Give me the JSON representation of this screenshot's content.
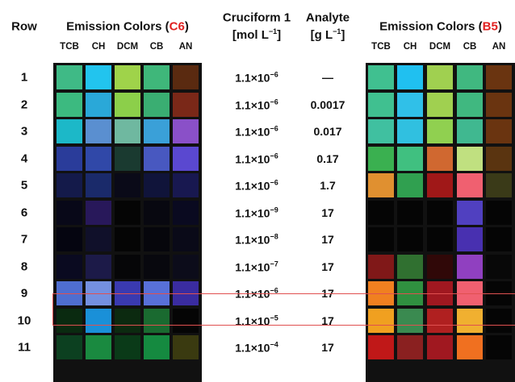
{
  "header": {
    "row": "Row",
    "left": {
      "prefix": "Emission Colors (",
      "code": "C6",
      "suffix": ")"
    },
    "right": {
      "prefix": "Emission Colors (",
      "code": "B5",
      "suffix": ")"
    },
    "conc": {
      "line1": "Cruciform 1",
      "unit_pre": "[mol L",
      "unit_exp": "−1",
      "unit_post": "]"
    },
    "analyte": {
      "line1": "Analyte",
      "unit_pre": "[g L",
      "unit_exp": "−1",
      "unit_post": "]"
    },
    "solvents": [
      "TCB",
      "CH",
      "DCM",
      "CB",
      "AN"
    ]
  },
  "rows": [
    {
      "row": "1",
      "left": [
        "#3fba86",
        "#22c4ee",
        "#9fd34a",
        "#3fb77a",
        "#5a2a10"
      ],
      "base": "1.1×10",
      "exp": "−6",
      "analyte": "—",
      "right": [
        "#40c090",
        "#20c0f0",
        "#a0d050",
        "#40b880",
        "#6a3410"
      ]
    },
    {
      "row": "2",
      "left": [
        "#3cba80",
        "#2aa8d8",
        "#8ccf4a",
        "#3aae72",
        "#7a2818"
      ],
      "base": "1.1×10",
      "exp": "−6",
      "analyte": "0.0017",
      "right": [
        "#40c090",
        "#30c0e8",
        "#a0d050",
        "#40b880",
        "#6a3410"
      ]
    },
    {
      "row": "3",
      "left": [
        "#1cb8c8",
        "#5a8fd0",
        "#6fb8a0",
        "#3aa0d8",
        "#8a50c8"
      ],
      "base": "1.1×10",
      "exp": "−6",
      "analyte": "0.017",
      "right": [
        "#40c0a0",
        "#30c0e0",
        "#90d050",
        "#40b890",
        "#6a3410"
      ]
    },
    {
      "row": "4",
      "left": [
        "#2a3c9a",
        "#3048a8",
        "#1a3a30",
        "#4858c0",
        "#5a48d0"
      ],
      "base": "1.1×10",
      "exp": "−6",
      "analyte": "0.17",
      "right": [
        "#3ab050",
        "#40c080",
        "#d06830",
        "#c0e080",
        "#5a3410"
      ]
    },
    {
      "row": "5",
      "left": [
        "#141a4a",
        "#1a2a6a",
        "#0a0a18",
        "#10143a",
        "#181850"
      ],
      "base": "1.1×10",
      "exp": "−6",
      "analyte": "1.7",
      "right": [
        "#e09030",
        "#30a050",
        "#a01818",
        "#f06070",
        "#3a3a18"
      ]
    },
    {
      "row": "6",
      "left": [
        "#080818",
        "#28185a",
        "#050505",
        "#080810",
        "#0a0a20"
      ],
      "base": "1.1×10",
      "exp": "−9",
      "analyte": "17",
      "right": [
        "#050505",
        "#050505",
        "#050505",
        "#5040c0",
        "#050505"
      ]
    },
    {
      "row": "7",
      "left": [
        "#050510",
        "#10102a",
        "#050505",
        "#06060c",
        "#0a0a18"
      ],
      "base": "1.1×10",
      "exp": "−8",
      "analyte": "17",
      "right": [
        "#050505",
        "#050505",
        "#050505",
        "#4830b0",
        "#050505"
      ]
    },
    {
      "row": "8",
      "left": [
        "#0a0a20",
        "#1c1a48",
        "#060608",
        "#08080e",
        "#0c0c1a"
      ],
      "base": "1.1×10",
      "exp": "−7",
      "analyte": "17",
      "right": [
        "#801818",
        "#307030",
        "#300808",
        "#9040c0",
        "#080808"
      ]
    },
    {
      "row": "9",
      "left": [
        "#4f6ed0",
        "#7490e0",
        "#3a3ab0",
        "#5870d8",
        "#3a2ca0"
      ],
      "base": "1.1×10",
      "exp": "−6",
      "analyte": "17",
      "right": [
        "#f08020",
        "#309040",
        "#a01820",
        "#f06070",
        "#050505"
      ]
    },
    {
      "row": "10",
      "left": [
        "#0a2a10",
        "#1a90d8",
        "#0c2a10",
        "#1a6a30",
        "#050505"
      ],
      "base": "1.1×10",
      "exp": "−5",
      "analyte": "17",
      "right": [
        "#f0a020",
        "#3a8a50",
        "#b02020",
        "#f0b030",
        "#050505"
      ]
    },
    {
      "row": "11",
      "left": [
        "#0c4020",
        "#1a8a40",
        "#0a3a18",
        "#158a40",
        "#3a3a10"
      ],
      "base": "1.1×10",
      "exp": "−4",
      "analyte": "17",
      "right": [
        "#c01818",
        "#8a2020",
        "#a01820",
        "#f07020",
        "#050505"
      ]
    }
  ]
}
